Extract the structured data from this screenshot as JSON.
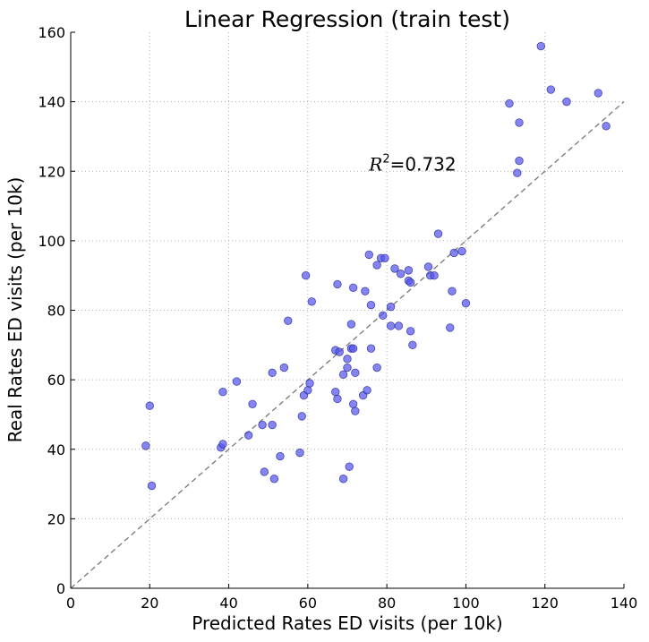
{
  "chart_data": {
    "type": "scatter",
    "title": "Linear Regression (train test)",
    "xlabel": "Predicted Rates ED visits (per 10k)",
    "ylabel": "Real Rates ED visits (per 10k)",
    "xlim": [
      0,
      140
    ],
    "ylim": [
      0,
      160
    ],
    "xticks": [
      "0",
      "20",
      "40",
      "60",
      "80",
      "100",
      "120",
      "140"
    ],
    "yticks": [
      "0",
      "20",
      "40",
      "60",
      "80",
      "100",
      "120",
      "140",
      "160"
    ],
    "grid": true,
    "point_color": "#5555ee",
    "identity_line_color": "#777777",
    "annotation": {
      "prefix": "R",
      "exponent": "2",
      "text": "=0.732",
      "x": 75.5,
      "y": 122
    },
    "points": [
      {
        "x": 19,
        "y": 41
      },
      {
        "x": 20,
        "y": 52.5
      },
      {
        "x": 20.5,
        "y": 29.5
      },
      {
        "x": 38,
        "y": 40.5
      },
      {
        "x": 38.5,
        "y": 56.5
      },
      {
        "x": 38.5,
        "y": 41.5
      },
      {
        "x": 42,
        "y": 59.5
      },
      {
        "x": 45,
        "y": 44
      },
      {
        "x": 46,
        "y": 53
      },
      {
        "x": 48.5,
        "y": 47
      },
      {
        "x": 49,
        "y": 33.5
      },
      {
        "x": 51,
        "y": 62
      },
      {
        "x": 51,
        "y": 47
      },
      {
        "x": 51.5,
        "y": 31.5
      },
      {
        "x": 53,
        "y": 38
      },
      {
        "x": 54,
        "y": 63.5
      },
      {
        "x": 55,
        "y": 77
      },
      {
        "x": 58,
        "y": 39
      },
      {
        "x": 58.5,
        "y": 49.5
      },
      {
        "x": 59,
        "y": 55.5
      },
      {
        "x": 60,
        "y": 57
      },
      {
        "x": 60.5,
        "y": 59
      },
      {
        "x": 59.5,
        "y": 90
      },
      {
        "x": 61,
        "y": 82.5
      },
      {
        "x": 67,
        "y": 56.5
      },
      {
        "x": 67.5,
        "y": 54.5
      },
      {
        "x": 67,
        "y": 68.5
      },
      {
        "x": 67.5,
        "y": 87.5
      },
      {
        "x": 68,
        "y": 68
      },
      {
        "x": 69,
        "y": 61.5
      },
      {
        "x": 69,
        "y": 31.5
      },
      {
        "x": 70,
        "y": 66
      },
      {
        "x": 70,
        "y": 63.5
      },
      {
        "x": 70.5,
        "y": 35
      },
      {
        "x": 71,
        "y": 76
      },
      {
        "x": 71,
        "y": 69
      },
      {
        "x": 71.5,
        "y": 69
      },
      {
        "x": 71.5,
        "y": 53
      },
      {
        "x": 71.5,
        "y": 86.5
      },
      {
        "x": 72,
        "y": 62
      },
      {
        "x": 72,
        "y": 51
      },
      {
        "x": 74,
        "y": 55.5
      },
      {
        "x": 74.5,
        "y": 85.5
      },
      {
        "x": 75,
        "y": 57
      },
      {
        "x": 75.5,
        "y": 96
      },
      {
        "x": 76,
        "y": 81.5
      },
      {
        "x": 76,
        "y": 69
      },
      {
        "x": 77.5,
        "y": 63.5
      },
      {
        "x": 77.5,
        "y": 93
      },
      {
        "x": 78.5,
        "y": 95
      },
      {
        "x": 79,
        "y": 78.5
      },
      {
        "x": 79.5,
        "y": 95
      },
      {
        "x": 81,
        "y": 81
      },
      {
        "x": 81,
        "y": 75.5
      },
      {
        "x": 82,
        "y": 92
      },
      {
        "x": 83,
        "y": 75.5
      },
      {
        "x": 83.5,
        "y": 90.5
      },
      {
        "x": 85.5,
        "y": 91.5
      },
      {
        "x": 85.5,
        "y": 88.5
      },
      {
        "x": 86,
        "y": 88
      },
      {
        "x": 86,
        "y": 74
      },
      {
        "x": 86.5,
        "y": 70
      },
      {
        "x": 90.5,
        "y": 92.5
      },
      {
        "x": 91,
        "y": 90
      },
      {
        "x": 92,
        "y": 90
      },
      {
        "x": 93,
        "y": 102
      },
      {
        "x": 96,
        "y": 75
      },
      {
        "x": 96.5,
        "y": 85.5
      },
      {
        "x": 97,
        "y": 96.5
      },
      {
        "x": 99,
        "y": 97
      },
      {
        "x": 100,
        "y": 82
      },
      {
        "x": 111,
        "y": 139.5
      },
      {
        "x": 113,
        "y": 119.5
      },
      {
        "x": 113.5,
        "y": 134
      },
      {
        "x": 113.5,
        "y": 123
      },
      {
        "x": 119,
        "y": 156
      },
      {
        "x": 121.5,
        "y": 143.5
      },
      {
        "x": 125.5,
        "y": 140
      },
      {
        "x": 133.5,
        "y": 142.5
      },
      {
        "x": 135.5,
        "y": 133
      }
    ]
  }
}
